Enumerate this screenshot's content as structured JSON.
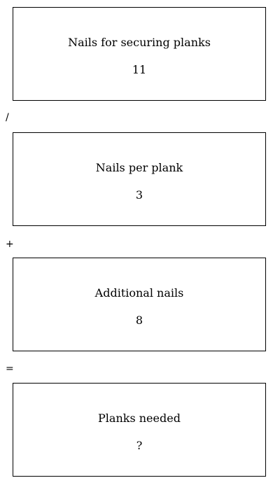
{
  "cards": [
    {
      "label": "Nails for securing planks",
      "value": "11"
    },
    {
      "label": "Nails per plank",
      "value": "3"
    },
    {
      "label": "Additional nails",
      "value": "8"
    },
    {
      "label": "Planks needed",
      "value": "?"
    }
  ],
  "operators": [
    "/",
    "+",
    "="
  ]
}
